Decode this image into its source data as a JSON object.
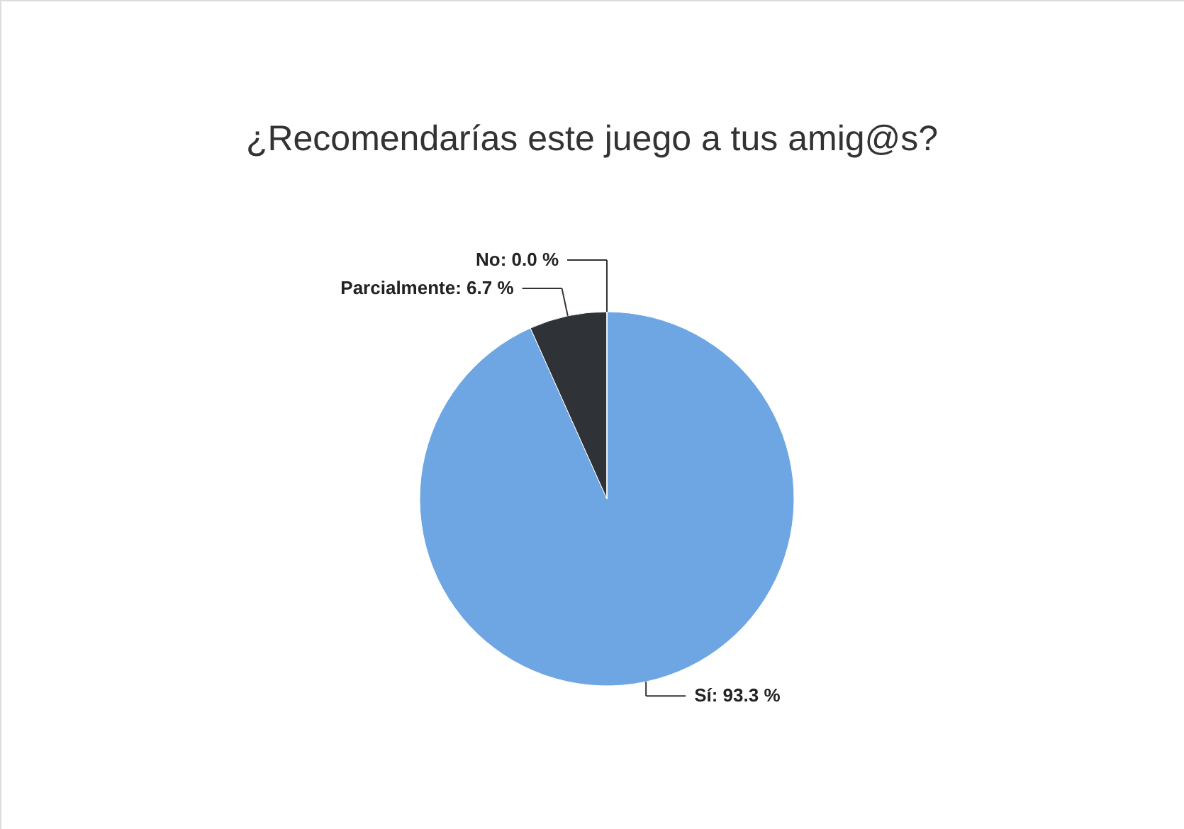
{
  "chart_data": {
    "type": "pie",
    "title": "¿Recomendarías este juego a tus amig@s?",
    "categories": [
      "Sí",
      "Parcialmente",
      "No"
    ],
    "values": [
      93.3,
      6.7,
      0.0
    ],
    "value_labels": [
      "93.3 %",
      "6.7 %",
      "0.0 %"
    ],
    "colors": [
      "#6ea6e3",
      "#2f3338",
      "#9bbf4a"
    ]
  }
}
